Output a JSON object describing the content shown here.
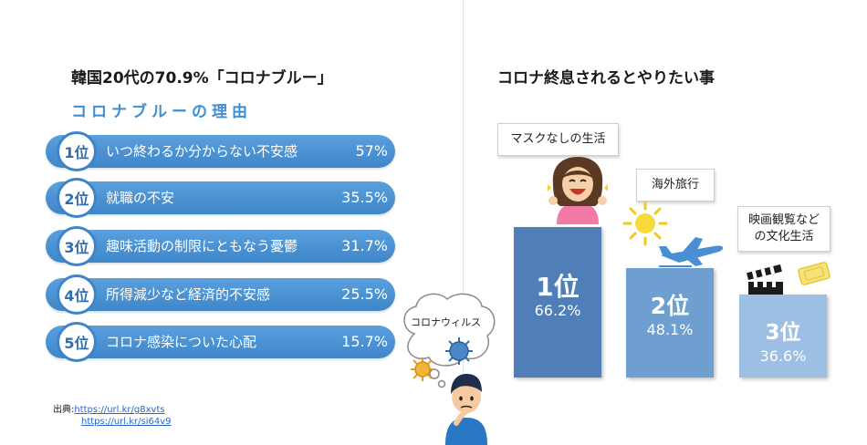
{
  "left": {
    "title": "韓国20代の70.9%「コロナブルー」",
    "subtitle": "コロナブルーの理由",
    "reasons": [
      {
        "rank": "1位",
        "label": "いつ終わるか分からない不安感",
        "value": "57%"
      },
      {
        "rank": "2位",
        "label": "就職の不安",
        "value": "35.5%"
      },
      {
        "rank": "3位",
        "label": "趣味活動の制限にともなう憂鬱",
        "value": "31.7%"
      },
      {
        "rank": "4位",
        "label": "所得減少など経済的不安感",
        "value": "25.5%"
      },
      {
        "rank": "5位",
        "label": "コロナ感染についた心配",
        "value": "15.7%"
      }
    ],
    "source": {
      "label": "出典:",
      "links": [
        "https://url.kr/g8xvts",
        "https://url.kr/si64v9"
      ]
    },
    "thought_bubble": "コロナウィルス"
  },
  "right": {
    "title": "コロナ終息されるとやりたい事",
    "callouts": [
      "マスクなしの生活",
      "海外旅行",
      "映画観覧など\nの文化生活"
    ]
  },
  "chart_data": {
    "type": "bar",
    "title": "コロナ終息されるとやりたい事",
    "categories": [
      "マスクなしの生活",
      "海外旅行",
      "映画観覧などの文化生活"
    ],
    "values": [
      66.2,
      48.1,
      36.6
    ],
    "rank_labels": [
      "1位",
      "2位",
      "3位"
    ],
    "value_labels": [
      "66.2%",
      "48.1%",
      "36.6%"
    ],
    "colors": [
      "#4f7fb6",
      "#6e9fd0",
      "#9dbfe3"
    ],
    "xlabel": "",
    "ylabel": "",
    "grid": false
  },
  "colors": {
    "accent": "#3d8fd1",
    "pill": "#4a90d6",
    "badge_border": "#3e84c7",
    "link": "#2a64c8"
  },
  "icons": [
    "sun-icon",
    "airplane-icon",
    "clapperboard-icon",
    "ticket-icon",
    "virus-icon",
    "worried-person-icon",
    "happy-woman-icon"
  ]
}
